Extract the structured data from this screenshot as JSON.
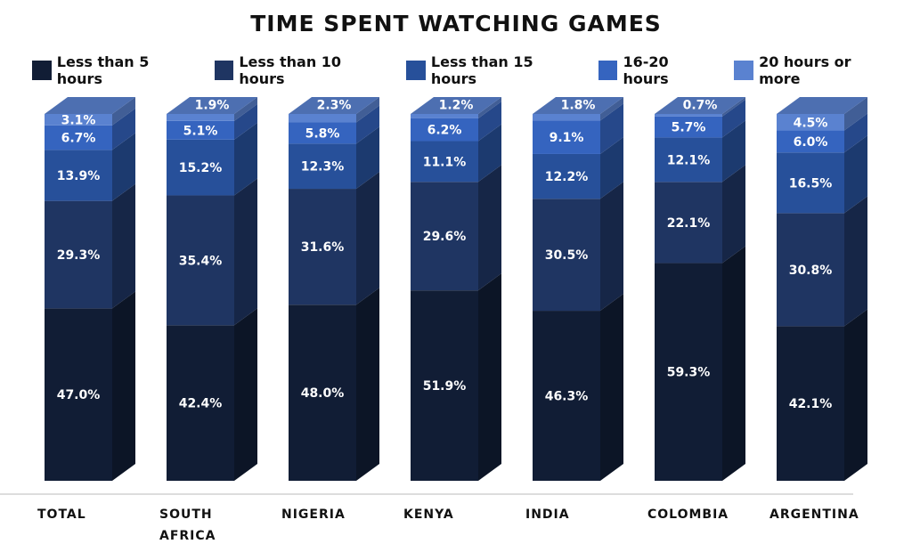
{
  "chart_data": {
    "type": "bar",
    "stacked": true,
    "title": "TIME SPENT WATCHING GAMES",
    "xlabel": "",
    "ylabel": "",
    "legend_position": "top",
    "categories": [
      [
        "TOTAL"
      ],
      [
        "SOUTH",
        "AFRICA"
      ],
      [
        "NIGERIA"
      ],
      [
        "KENYA"
      ],
      [
        "INDIA"
      ],
      [
        "COLOMBIA"
      ],
      [
        "ARGENTINA"
      ]
    ],
    "series": [
      {
        "name": "Less than 5 hours",
        "color": "#111d35",
        "values": [
          47.0,
          42.4,
          48.0,
          51.9,
          46.3,
          59.3,
          42.1
        ]
      },
      {
        "name": "Less than 10 hours",
        "color": "#1f3562",
        "values": [
          29.3,
          35.4,
          31.6,
          29.6,
          30.5,
          22.1,
          30.8
        ]
      },
      {
        "name": "Less than 15 hours",
        "color": "#27509a",
        "values": [
          13.9,
          15.2,
          12.3,
          11.1,
          12.2,
          12.1,
          16.5
        ]
      },
      {
        "name": "16-20 hours",
        "color": "#3564bf",
        "values": [
          6.7,
          5.1,
          5.8,
          6.2,
          9.1,
          5.7,
          6.0
        ]
      },
      {
        "name": "20 hours or more",
        "color": "#5a82d0",
        "values": [
          3.1,
          1.9,
          2.3,
          1.2,
          1.8,
          0.7,
          4.5
        ]
      }
    ]
  }
}
